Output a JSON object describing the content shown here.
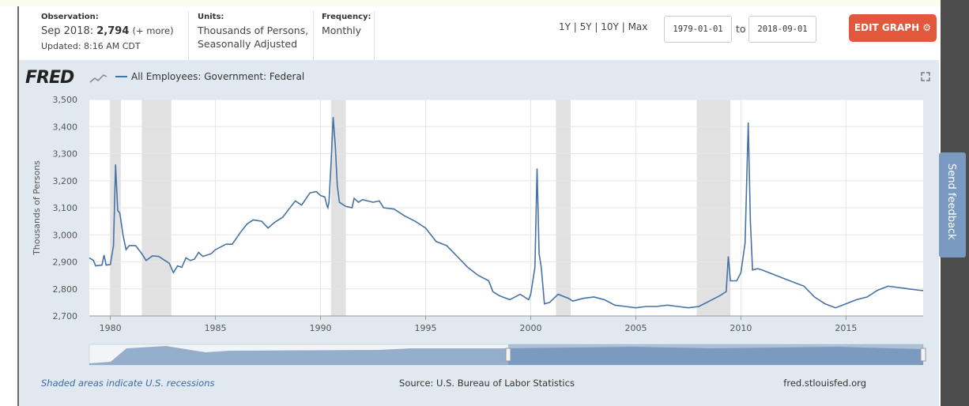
{
  "header": {
    "observation_label": "Observation:",
    "observation_date": "Sep 2018:",
    "observation_value": "2,794",
    "more": "(+ more)",
    "updated": "Updated: 8:16 AM CDT",
    "units_label": "Units:",
    "units_1": "Thousands of Persons,",
    "units_2": "Seasonally Adjusted",
    "frequency_label": "Frequency:",
    "frequency": "Monthly",
    "ranges": [
      "1Y",
      "5Y",
      "10Y",
      "Max"
    ],
    "start_date": "1979-01-01",
    "to": "to",
    "end_date": "2018-09-01",
    "edit_button": "EDIT GRAPH"
  },
  "logo": "FRED",
  "feedback": "Send feedback",
  "footer": {
    "note": "Shaded areas indicate U.S. recessions",
    "source": "Source: U.S. Bureau of Labor Statistics",
    "site": "fred.stlouisfed.org"
  },
  "chart_data": {
    "type": "line",
    "y_label": "Thousands of Persons",
    "xlim": [
      1979,
      2018.67
    ],
    "ylim": [
      2700,
      3500
    ],
    "xticks": [
      1980,
      1985,
      1990,
      1995,
      2000,
      2005,
      2010,
      2015
    ],
    "yticks": [
      {
        "value": 2700,
        "label": "2,700"
      },
      {
        "value": 2800,
        "label": "2,800"
      },
      {
        "value": 2900,
        "label": "2,900"
      },
      {
        "value": 3000,
        "label": "3,000"
      },
      {
        "value": 3100,
        "label": "3,100"
      },
      {
        "value": 3200,
        "label": "3,200"
      },
      {
        "value": 3300,
        "label": "3,300"
      },
      {
        "value": 3400,
        "label": "3,400"
      },
      {
        "value": 3500,
        "label": "3,500"
      }
    ],
    "grid": true,
    "recessions": [
      [
        1980.0,
        1980.5
      ],
      [
        1981.5,
        1982.9
      ],
      [
        1990.5,
        1991.2
      ],
      [
        2001.2,
        2001.9
      ],
      [
        2007.9,
        2009.5
      ]
    ],
    "recession_color": "#e1e1e1",
    "x": [
      1979.0,
      1979.2,
      1979.3,
      1979.6,
      1979.7,
      1979.8,
      1980.0,
      1980.15,
      1980.25,
      1980.35,
      1980.45,
      1980.6,
      1980.75,
      1980.9,
      1981.2,
      1981.5,
      1981.7,
      1982.0,
      1982.3,
      1982.6,
      1982.8,
      1983.0,
      1983.2,
      1983.4,
      1983.6,
      1983.8,
      1984.0,
      1984.2,
      1984.4,
      1984.8,
      1985.0,
      1985.5,
      1985.8,
      1986.2,
      1986.5,
      1986.8,
      1987.2,
      1987.5,
      1987.8,
      1988.2,
      1988.5,
      1988.8,
      1989.1,
      1989.5,
      1989.8,
      1990.0,
      1990.2,
      1990.3,
      1990.35,
      1990.4,
      1990.5,
      1990.6,
      1990.7,
      1990.8,
      1990.9,
      1991.2,
      1991.5,
      1991.6,
      1991.8,
      1992.0,
      1992.5,
      1992.8,
      1993.0,
      1993.5,
      1994.0,
      1994.5,
      1995.0,
      1995.5,
      1996.0,
      1996.5,
      1997.0,
      1997.5,
      1998.0,
      1998.2,
      1998.5,
      1999.0,
      1999.5,
      1999.7,
      1999.9,
      2000.0,
      2000.2,
      2000.3,
      2000.4,
      2000.5,
      2000.65,
      2000.9,
      2001.3,
      2001.8,
      2002.0,
      2002.5,
      2003.0,
      2003.5,
      2004.0,
      2004.5,
      2005.0,
      2005.5,
      2006.0,
      2006.5,
      2007.0,
      2007.5,
      2008.0,
      2008.5,
      2009.0,
      2009.3,
      2009.4,
      2009.5,
      2009.8,
      2010.0,
      2010.2,
      2010.35,
      2010.45,
      2010.55,
      2010.8,
      2011.0,
      2011.5,
      2012.0,
      2012.5,
      2013.0,
      2013.5,
      2014.0,
      2014.5,
      2015.0,
      2015.5,
      2016.0,
      2016.5,
      2017.0,
      2017.5,
      2018.0,
      2018.5,
      2018.67
    ],
    "series": [
      {
        "name": "All Employees: Government: Federal",
        "color": "#4572a7",
        "values": [
          2915,
          2905,
          2885,
          2888,
          2925,
          2888,
          2890,
          2960,
          3260,
          3090,
          3080,
          3000,
          2945,
          2960,
          2960,
          2930,
          2905,
          2922,
          2920,
          2905,
          2895,
          2860,
          2885,
          2880,
          2915,
          2905,
          2910,
          2935,
          2920,
          2930,
          2945,
          2965,
          2965,
          3010,
          3040,
          3055,
          3050,
          3025,
          3045,
          3065,
          3095,
          3125,
          3110,
          3155,
          3160,
          3145,
          3140,
          3110,
          3100,
          3120,
          3260,
          3435,
          3330,
          3180,
          3120,
          3105,
          3100,
          3135,
          3120,
          3130,
          3120,
          3125,
          3100,
          3095,
          3070,
          3050,
          3025,
          2975,
          2960,
          2920,
          2880,
          2850,
          2830,
          2790,
          2775,
          2760,
          2780,
          2770,
          2760,
          2780,
          2880,
          3245,
          2930,
          2880,
          2745,
          2750,
          2780,
          2765,
          2755,
          2765,
          2770,
          2760,
          2740,
          2735,
          2730,
          2735,
          2735,
          2740,
          2735,
          2730,
          2735,
          2755,
          2775,
          2790,
          2920,
          2830,
          2830,
          2860,
          2970,
          3415,
          3050,
          2870,
          2875,
          2870,
          2855,
          2840,
          2825,
          2810,
          2770,
          2745,
          2730,
          2745,
          2760,
          2770,
          2795,
          2810,
          2805,
          2800,
          2795,
          2794
        ]
      }
    ]
  }
}
